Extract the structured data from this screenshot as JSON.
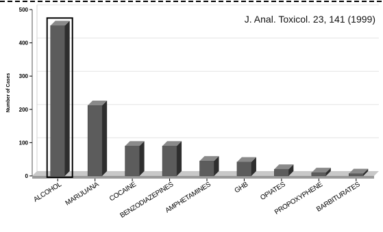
{
  "chart_data": {
    "type": "bar",
    "categories": [
      "ALCOHOL",
      "MARIJUANA",
      "COCAINE",
      "BENZODIAZEPINES",
      "AMPHETAMINES",
      "GHB",
      "OPIATES",
      "PROPOXYPHENE",
      "BARBITURATES"
    ],
    "values": [
      452,
      212,
      90,
      90,
      45,
      42,
      20,
      10,
      7
    ],
    "ylabel": "Number of Cases",
    "xlabel": "",
    "title": "",
    "ylim": [
      0,
      500
    ],
    "yticks": [
      0,
      100,
      200,
      300,
      400,
      500
    ],
    "grid": true,
    "highlighted_category": "ALCOHOL",
    "annotation": "J. Anal. Toxicol. 23, 141 (1999)",
    "colors": {
      "bar_front": "#5c5c5c",
      "bar_side": "#2e2e2e",
      "bar_top": "#8a8a8a",
      "floor": "#9a9a9a",
      "highlight_border": "#000000",
      "dashed_border": "#000000"
    }
  }
}
